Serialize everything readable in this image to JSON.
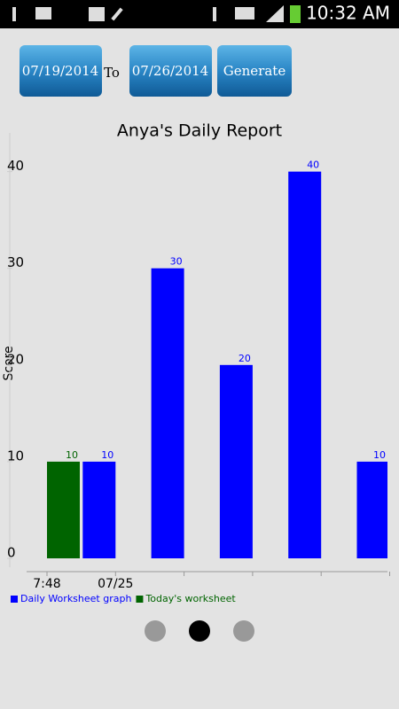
{
  "status_bar": {
    "time": "10:32 AM"
  },
  "controls": {
    "from_date": "07/19/2014",
    "to_label": "To",
    "to_date": "07/26/2014",
    "generate": "Generate"
  },
  "chart_data": {
    "type": "bar",
    "title": "Anya's Daily Report",
    "y_label": "Score",
    "categories": [
      "7:48",
      "07/25",
      null,
      null,
      null,
      null
    ],
    "series": [
      {
        "name": "Daily Worksheet graph",
        "color": "#0000ff",
        "values": [
          null,
          10,
          30,
          20,
          40,
          10
        ]
      },
      {
        "name": "Today's worksheet",
        "color": "#006400",
        "values": [
          10,
          null,
          null,
          null,
          null,
          null
        ]
      }
    ],
    "ylim": [
      0,
      44
    ],
    "yticks": [
      0,
      10,
      20,
      30,
      40
    ]
  },
  "pager": {
    "pages": 3,
    "current": 1
  }
}
